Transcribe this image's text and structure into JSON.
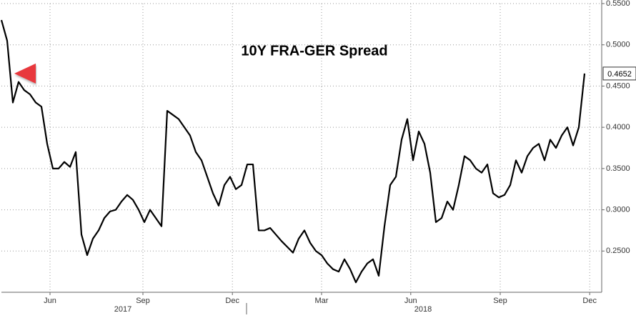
{
  "chart_data": {
    "type": "line",
    "title": "10Y FRA-GER Spread",
    "series": [
      {
        "name": "10Y FRA-GER Spread",
        "color": "#000000",
        "values": [
          0.53,
          0.505,
          0.43,
          0.455,
          0.445,
          0.44,
          0.43,
          0.425,
          0.38,
          0.35,
          0.35,
          0.358,
          0.352,
          0.37,
          0.27,
          0.245,
          0.265,
          0.275,
          0.29,
          0.298,
          0.3,
          0.31,
          0.318,
          0.312,
          0.3,
          0.285,
          0.3,
          0.29,
          0.28,
          0.42,
          0.415,
          0.41,
          0.4,
          0.39,
          0.37,
          0.36,
          0.34,
          0.32,
          0.305,
          0.33,
          0.34,
          0.325,
          0.33,
          0.355,
          0.355,
          0.275,
          0.275,
          0.278,
          0.27,
          0.262,
          0.255,
          0.248,
          0.265,
          0.275,
          0.26,
          0.25,
          0.245,
          0.235,
          0.228,
          0.225,
          0.24,
          0.228,
          0.212,
          0.225,
          0.235,
          0.24,
          0.22,
          0.28,
          0.33,
          0.34,
          0.385,
          0.41,
          0.36,
          0.395,
          0.38,
          0.345,
          0.285,
          0.29,
          0.31,
          0.3,
          0.33,
          0.365,
          0.36,
          0.35,
          0.345,
          0.355,
          0.32,
          0.315,
          0.318,
          0.33,
          0.36,
          0.345,
          0.365,
          0.375,
          0.38,
          0.36,
          0.385,
          0.375,
          0.39,
          0.4,
          0.378,
          0.4,
          0.4652
        ]
      }
    ],
    "last_value_label": "0.4652",
    "xlim": [
      0,
      105
    ],
    "xticks": [
      {
        "value": 8.5,
        "label": "Jun"
      },
      {
        "value": 24.75,
        "label": "Sep"
      },
      {
        "value": 40.4,
        "label": "Dec"
      },
      {
        "value": 56,
        "label": "Mar"
      },
      {
        "value": 71.6,
        "label": "Jun"
      },
      {
        "value": 87.25,
        "label": "Sep"
      },
      {
        "value": 102.9,
        "label": "Dec"
      }
    ],
    "years": [
      "2017",
      "2018"
    ],
    "ylim": [
      0.2,
      0.55
    ],
    "yticks": [
      {
        "value": 0.25,
        "label": "0.2500"
      },
      {
        "value": 0.3,
        "label": "0.3000"
      },
      {
        "value": 0.35,
        "label": "0.3500"
      },
      {
        "value": 0.4,
        "label": "0.4000"
      },
      {
        "value": 0.45,
        "label": "0.4500"
      },
      {
        "value": 0.5,
        "label": "0.5000"
      },
      {
        "value": 0.55,
        "label": "0.5500"
      }
    ],
    "grid": true
  }
}
